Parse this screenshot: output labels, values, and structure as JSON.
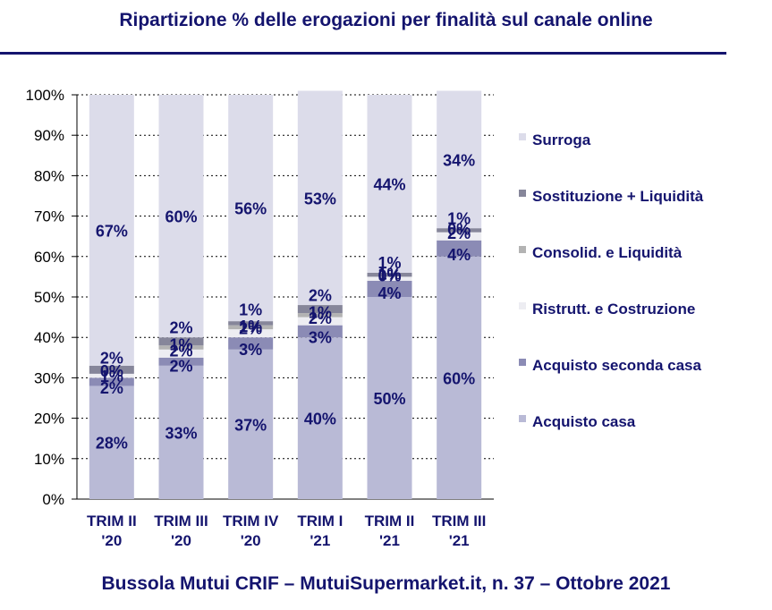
{
  "header": {
    "title": "Ripartizione % delle erogazioni per finalità sul canale online"
  },
  "footer": {
    "text": "Bussola Mutui CRIF – MutuiSupermarket.it, n. 37 – Ottobre 2021"
  },
  "chart_data": {
    "type": "bar",
    "stacked": true,
    "categories": [
      [
        "TRIM II",
        "'20"
      ],
      [
        "TRIM III",
        "'20"
      ],
      [
        "TRIM IV",
        "'20"
      ],
      [
        "TRIM I",
        "'21"
      ],
      [
        "TRIM II",
        "'21"
      ],
      [
        "TRIM III",
        "'21"
      ]
    ],
    "y_ticks": [
      "0%",
      "10%",
      "20%",
      "30%",
      "40%",
      "50%",
      "60%",
      "70%",
      "80%",
      "90%",
      "100%"
    ],
    "ylim": [
      0,
      100
    ],
    "grid": true,
    "legend_position": "right",
    "series": [
      {
        "name": "Acquisto casa",
        "color": "#b9bad6",
        "values": [
          28,
          33,
          37,
          40,
          50,
          60
        ]
      },
      {
        "name": "Acquisto seconda casa",
        "color": "#8b8bb5",
        "values": [
          2,
          2,
          3,
          3,
          4,
          4
        ]
      },
      {
        "name": "Ristrutt. e Costruzione",
        "color": "#ededf2",
        "values": [
          1,
          2,
          2,
          2,
          1,
          2
        ]
      },
      {
        "name": "Consolid. e Liquidità",
        "color": "#b3b3b3",
        "values": [
          0,
          1,
          1,
          1,
          0,
          0
        ]
      },
      {
        "name": "Sostituzione + Liquidità",
        "color": "#86869a",
        "values": [
          2,
          2,
          1,
          2,
          1,
          1
        ]
      },
      {
        "name": "Surroga",
        "color": "#dcdcea",
        "values": [
          67,
          60,
          56,
          53,
          44,
          34
        ]
      }
    ]
  }
}
